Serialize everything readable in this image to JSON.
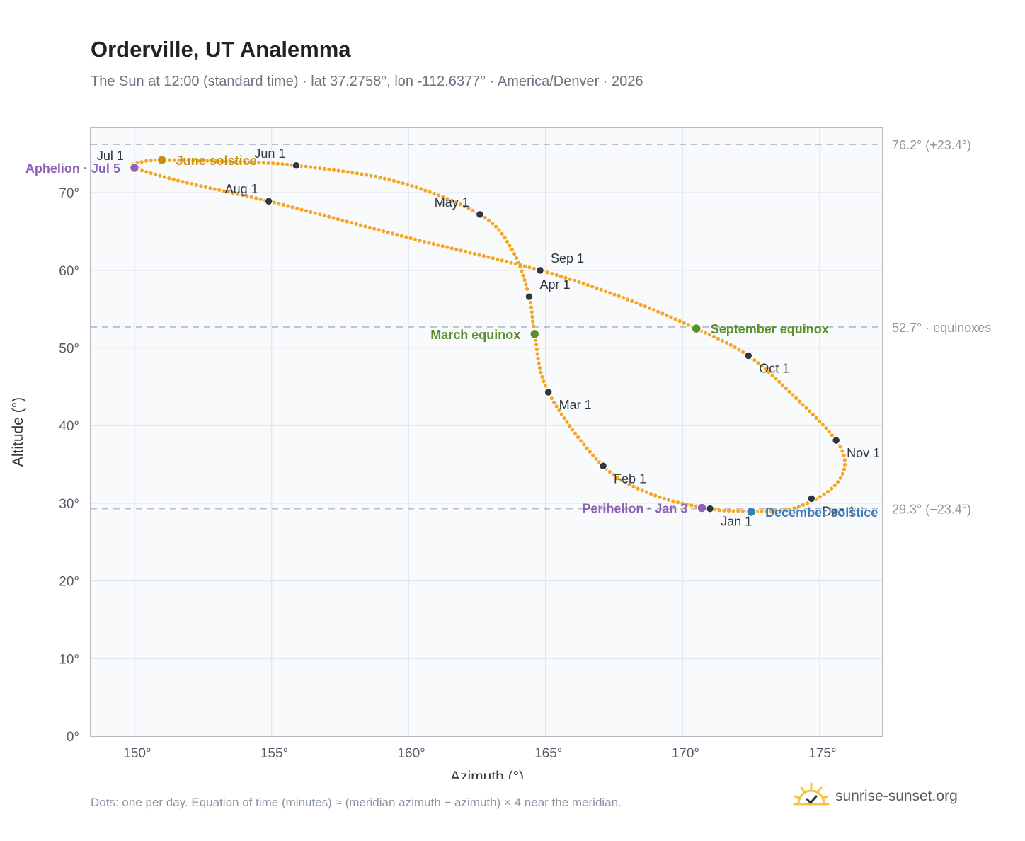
{
  "header": {
    "title": "Orderville, UT Analemma",
    "subtitle": "The Sun at 12:00 (standard time) · lat 37.2758°, lon -112.6377° · America/Denver · 2026"
  },
  "footer": {
    "note": "Dots: one per day. Equation of time (minutes) ≈ (meridian azimuth − azimuth) × 4 near the meridian.",
    "brand": "sunrise-sunset.org"
  },
  "colors": {
    "path": "#f5a623",
    "month_marker": "#2f3640",
    "solstice_june": "#c8900f",
    "solstice_december": "#3b7bbf",
    "equinox": "#5a8f2e",
    "apsis": "#8e63b5",
    "reference_line": "#b8c2cf",
    "plot_background": "#f8fafc",
    "frame": "#9aa5b4"
  },
  "chart_data": {
    "type": "scatter",
    "xlabel": "Azimuth (°)",
    "ylabel": "Altitude (°)",
    "xlim": [
      148.4,
      177.3
    ],
    "ylim": [
      0,
      78.4
    ],
    "x_ticks": [
      150,
      155,
      160,
      165,
      170,
      175
    ],
    "x_tick_labels": [
      "150°",
      "155°",
      "160°",
      "165°",
      "170°",
      "175°"
    ],
    "y_ticks": [
      0,
      10,
      20,
      30,
      40,
      50,
      60,
      70
    ],
    "y_tick_labels": [
      "0°",
      "10°",
      "20°",
      "30°",
      "40°",
      "50°",
      "60°",
      "70°"
    ],
    "grid": true,
    "reference_lines": [
      {
        "y": 76.2,
        "label": "76.2° (+23.4°)"
      },
      {
        "y": 52.7,
        "label": "52.7° · equinoxes"
      },
      {
        "y": 29.3,
        "label": "29.3° (−23.4°)"
      }
    ],
    "path_points": [
      {
        "x": 171.0,
        "y": 29.3
      },
      {
        "x": 172.1,
        "y": 29.0
      },
      {
        "x": 173.1,
        "y": 29.0
      },
      {
        "x": 174.1,
        "y": 29.4
      },
      {
        "x": 175.3,
        "y": 31.5
      },
      {
        "x": 175.9,
        "y": 34.5
      },
      {
        "x": 175.6,
        "y": 38.1
      },
      {
        "x": 174.0,
        "y": 44.0
      },
      {
        "x": 172.4,
        "y": 49.0
      },
      {
        "x": 170.5,
        "y": 52.5
      },
      {
        "x": 167.8,
        "y": 56.5
      },
      {
        "x": 164.8,
        "y": 60.0
      },
      {
        "x": 160.0,
        "y": 64.2
      },
      {
        "x": 154.9,
        "y": 68.9
      },
      {
        "x": 152.0,
        "y": 71.2
      },
      {
        "x": 150.0,
        "y": 73.2
      },
      {
        "x": 150.2,
        "y": 73.9
      },
      {
        "x": 151.0,
        "y": 74.2
      },
      {
        "x": 153.5,
        "y": 74.0
      },
      {
        "x": 155.9,
        "y": 73.5
      },
      {
        "x": 159.5,
        "y": 71.5
      },
      {
        "x": 162.6,
        "y": 67.2
      },
      {
        "x": 163.8,
        "y": 62.5
      },
      {
        "x": 164.4,
        "y": 56.6
      },
      {
        "x": 164.6,
        "y": 51.8
      },
      {
        "x": 165.1,
        "y": 44.3
      },
      {
        "x": 167.1,
        "y": 34.8
      },
      {
        "x": 169.0,
        "y": 31.0
      },
      {
        "x": 171.0,
        "y": 29.3
      }
    ],
    "month_markers": [
      {
        "label": "Jan 1",
        "x": 171.0,
        "y": 29.3,
        "anchor": "below-right"
      },
      {
        "label": "Feb 1",
        "x": 167.1,
        "y": 34.8,
        "anchor": "below-right"
      },
      {
        "label": "Mar 1",
        "x": 165.1,
        "y": 44.3,
        "anchor": "below-right"
      },
      {
        "label": "Apr 1",
        "x": 164.4,
        "y": 56.6,
        "anchor": "above-right"
      },
      {
        "label": "May 1",
        "x": 162.6,
        "y": 67.2,
        "anchor": "above-left"
      },
      {
        "label": "Jun 1",
        "x": 155.9,
        "y": 73.5,
        "anchor": "above-left"
      },
      {
        "label": "Jul 1",
        "x": 150.0,
        "y": 73.2,
        "anchor": "above-left"
      },
      {
        "label": "Aug 1",
        "x": 154.9,
        "y": 68.9,
        "anchor": "above-left"
      },
      {
        "label": "Sep 1",
        "x": 164.8,
        "y": 60.0,
        "anchor": "above-right"
      },
      {
        "label": "Oct 1",
        "x": 172.4,
        "y": 49.0,
        "anchor": "below-right"
      },
      {
        "label": "Nov 1",
        "x": 175.6,
        "y": 38.1,
        "anchor": "below-right"
      },
      {
        "label": "Dec 1",
        "x": 174.7,
        "y": 30.6,
        "anchor": "below-right"
      }
    ],
    "events": [
      {
        "label": "June solstice",
        "x": 151.0,
        "y": 74.2,
        "color": "#c8900f",
        "side": "right"
      },
      {
        "label": "December solstice",
        "x": 172.5,
        "y": 28.9,
        "color": "#3b7bbf",
        "side": "right"
      },
      {
        "label": "March equinox",
        "x": 164.6,
        "y": 51.8,
        "color": "#5a8f2e",
        "side": "left"
      },
      {
        "label": "September equinox",
        "x": 170.5,
        "y": 52.5,
        "color": "#5a8f2e",
        "side": "right"
      },
      {
        "label": "Aphelion · Jul 5",
        "x": 150.0,
        "y": 73.2,
        "color": "#8e63b5",
        "side": "left"
      },
      {
        "label": "Perihelion · Jan 3",
        "x": 170.7,
        "y": 29.4,
        "color": "#8e63b5",
        "side": "left"
      }
    ]
  }
}
